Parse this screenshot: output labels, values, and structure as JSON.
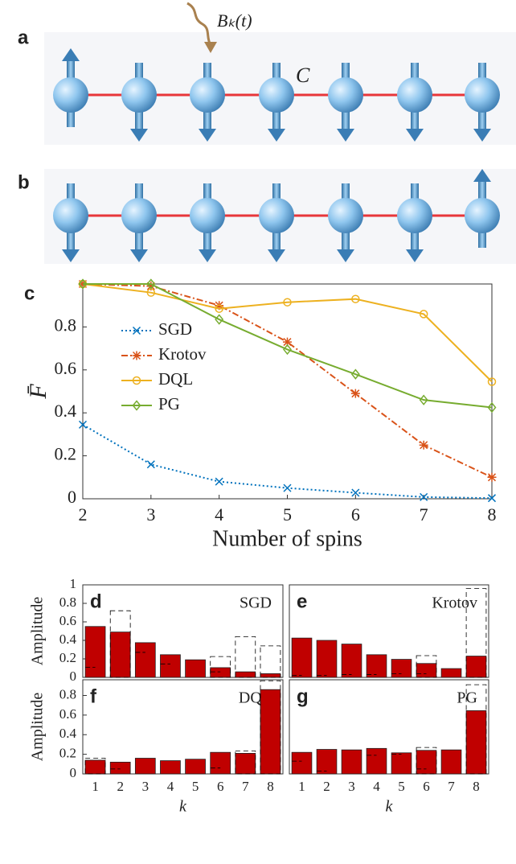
{
  "diagram": {
    "labels": [
      "a",
      "b"
    ],
    "field": "Bₖ(t)",
    "coupling": "C"
  },
  "chart_data": [
    {
      "type": "line",
      "panel_label": "c",
      "xlabel": "Number of spins",
      "ylabel": "F̄",
      "x": [
        2,
        3,
        4,
        5,
        6,
        7,
        8
      ],
      "xlim": [
        2,
        8
      ],
      "xticks": [
        2,
        3,
        4,
        5,
        6,
        7,
        8
      ],
      "ylim": [
        0,
        1
      ],
      "yticks": [
        0,
        0.2,
        0.4,
        0.6,
        0.8
      ],
      "legend": "upper-left",
      "series": [
        {
          "name": "SGD",
          "color": "#0072bd",
          "marker": "x",
          "dash": "dotted",
          "values": [
            0.345,
            0.16,
            0.08,
            0.05,
            0.028,
            0.008,
            0.003
          ]
        },
        {
          "name": "Krotov",
          "color": "#d95319",
          "marker": "*",
          "dash": "dashdot",
          "values": [
            1.0,
            0.99,
            0.9,
            0.73,
            0.49,
            0.25,
            0.1
          ]
        },
        {
          "name": "DQL",
          "color": "#edb120",
          "marker": "o",
          "dash": "solid",
          "values": [
            1.0,
            0.96,
            0.885,
            0.915,
            0.93,
            0.86,
            0.545
          ]
        },
        {
          "name": "PG",
          "color": "#77ac30",
          "marker": "d",
          "dash": "solid",
          "values": [
            1.0,
            1.0,
            0.835,
            0.695,
            0.58,
            0.46,
            0.425
          ]
        }
      ]
    },
    {
      "type": "bar",
      "panel_label": "d",
      "title": "SGD",
      "ylabel": "Amplitude",
      "x": [
        1,
        2,
        3,
        4,
        5,
        6,
        7,
        8
      ],
      "xlim": [
        0.5,
        8.5
      ],
      "ylim": [
        0,
        1
      ],
      "yticks": [
        0,
        0.2,
        0.4,
        0.6,
        0.8,
        1
      ],
      "series": [
        {
          "style": "solid",
          "color": "#c00000",
          "values": [
            0.55,
            0.49,
            0.375,
            0.245,
            0.19,
            0.105,
            0.06,
            0.04
          ]
        },
        {
          "style": "dashed",
          "color": "#000000",
          "values": [
            null,
            0.72,
            null,
            null,
            null,
            0.225,
            0.44,
            0.34
          ]
        },
        {
          "style": "tick",
          "color": "#000000",
          "values": [
            0.11,
            null,
            0.27,
            0.145,
            null,
            0.06,
            null,
            null
          ]
        }
      ]
    },
    {
      "type": "bar",
      "panel_label": "e",
      "title": "Krotov",
      "x": [
        1,
        2,
        3,
        4,
        5,
        6,
        7,
        8
      ],
      "xlim": [
        0.5,
        8.5
      ],
      "ylim": [
        0,
        1
      ],
      "series": [
        {
          "style": "solid",
          "color": "#c00000",
          "values": [
            0.425,
            0.4,
            0.36,
            0.245,
            0.195,
            0.15,
            0.095,
            0.23
          ]
        },
        {
          "style": "dashed",
          "color": "#000000",
          "values": [
            null,
            null,
            null,
            null,
            null,
            0.235,
            null,
            0.96
          ]
        },
        {
          "style": "tick",
          "color": "#000000",
          "values": [
            0.02,
            0.02,
            0.03,
            0.03,
            0.04,
            0.04,
            null,
            null
          ]
        }
      ]
    },
    {
      "type": "bar",
      "panel_label": "f",
      "title": "DQL",
      "ylabel": "Amplitude",
      "xlabel": "k",
      "x": [
        1,
        2,
        3,
        4,
        5,
        6,
        7,
        8
      ],
      "xlim": [
        0.5,
        8.5
      ],
      "xticks": [
        1,
        2,
        3,
        4,
        5,
        6,
        7,
        8
      ],
      "ylim": [
        0,
        0.96
      ],
      "yticks": [
        0,
        0.2,
        0.4,
        0.6,
        0.8
      ],
      "series": [
        {
          "style": "solid",
          "color": "#c00000",
          "values": [
            0.14,
            0.12,
            0.16,
            0.135,
            0.15,
            0.22,
            0.21,
            0.86
          ]
        },
        {
          "style": "dashed",
          "color": "#000000",
          "values": [
            0.16,
            null,
            null,
            null,
            null,
            null,
            0.235,
            0.95
          ]
        },
        {
          "style": "tick",
          "color": "#000000",
          "values": [
            null,
            0.05,
            null,
            null,
            null,
            0.06,
            null,
            null
          ]
        }
      ]
    },
    {
      "type": "bar",
      "panel_label": "g",
      "title": "PG",
      "xlabel": "k",
      "x": [
        1,
        2,
        3,
        4,
        5,
        6,
        7,
        8
      ],
      "xlim": [
        0.5,
        8.5
      ],
      "xticks": [
        1,
        2,
        3,
        4,
        5,
        6,
        7,
        8
      ],
      "ylim": [
        0,
        0.96
      ],
      "series": [
        {
          "style": "solid",
          "color": "#c00000",
          "values": [
            0.22,
            0.25,
            0.245,
            0.26,
            0.215,
            0.24,
            0.245,
            0.645
          ]
        },
        {
          "style": "dashed",
          "color": "#000000",
          "values": [
            null,
            null,
            null,
            null,
            null,
            0.27,
            null,
            0.91
          ]
        },
        {
          "style": "tick",
          "color": "#000000",
          "values": [
            0.13,
            0.03,
            null,
            0.19,
            0.2,
            0.05,
            null,
            null
          ]
        }
      ]
    }
  ]
}
